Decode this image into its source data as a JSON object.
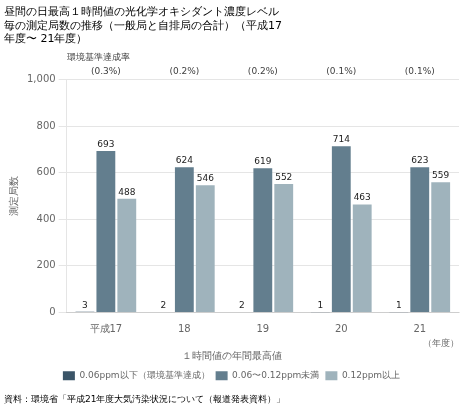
{
  "chart_data": {
    "type": "bar",
    "title": [
      "昼間の日最高１時間値の光化学オキシダント濃度レベル",
      "毎の測定局数の推移（一般局と自排局の合計）（平成17",
      "年度〜 21年度）"
    ],
    "ylabel": "測定局数",
    "xlabel": "（年度）",
    "categories": [
      "平成17",
      "18",
      "19",
      "20",
      "21"
    ],
    "series": [
      {
        "name": "0.06ppm以下（環境基準達成）",
        "color": "#3b5568",
        "values": [
          3,
          2,
          2,
          1,
          1
        ]
      },
      {
        "name": "0.06〜0.12ppm未満",
        "color": "#637e8e",
        "values": [
          693,
          624,
          619,
          714,
          623
        ]
      },
      {
        "name": "0.12ppm以上",
        "color": "#9fb3bc",
        "values": [
          488,
          546,
          552,
          463,
          559
        ]
      }
    ],
    "legend_title": "１時間値の年間最高値",
    "annotation": "環境基準達成率",
    "category_annotations": [
      "(0.3%)",
      "(0.2%)",
      "(0.2%)",
      "(0.1%)",
      "(0.1%)"
    ],
    "source": "資料：環境省「平成21年度大気汚染状況について（報道発表資料）」",
    "ylim": [
      0,
      1000
    ],
    "yticks": [
      0,
      200,
      400,
      600,
      800,
      {
        "value": 1000,
        "label": "1,000"
      }
    ],
    "grid": true,
    "data_labels": true,
    "legend": "bottom"
  }
}
